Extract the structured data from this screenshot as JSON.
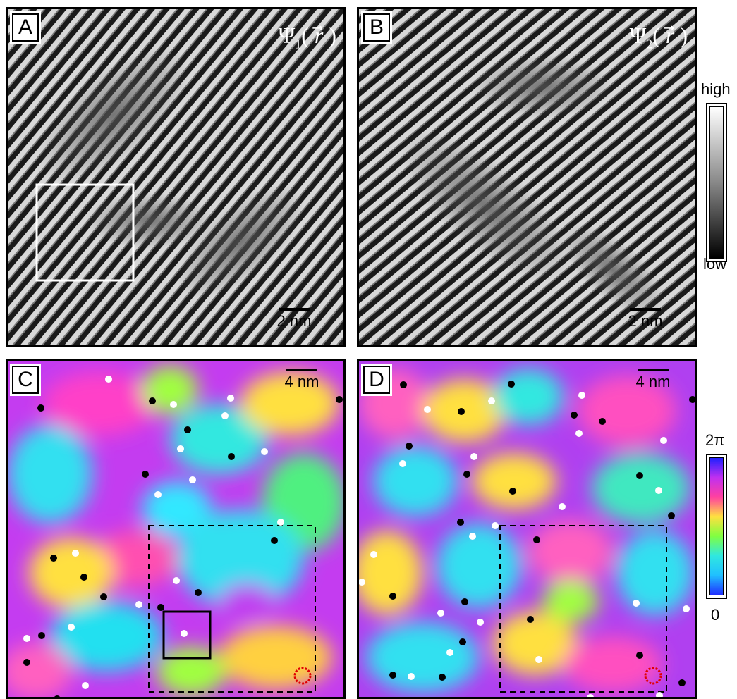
{
  "panels": {
    "a": {
      "letter": "A",
      "psi": "Ψ",
      "sub": "1",
      "arg": "r"
    },
    "b": {
      "letter": "B",
      "psi": "Ψ",
      "sub": "2",
      "arg": "r"
    },
    "c": {
      "letter": "C"
    },
    "d": {
      "letter": "D"
    }
  },
  "scalebars": {
    "top": "2 nm",
    "bottom": "4 nm"
  },
  "colorbars": {
    "amplitude": {
      "high": "high",
      "low": "low"
    },
    "phase": {
      "max": "2π",
      "min": "0"
    }
  },
  "colors": {
    "vortex_positive": "#ffffff",
    "vortex_negative": "#000000",
    "highlight_ring": "#e00000",
    "frame": "#000000"
  }
}
